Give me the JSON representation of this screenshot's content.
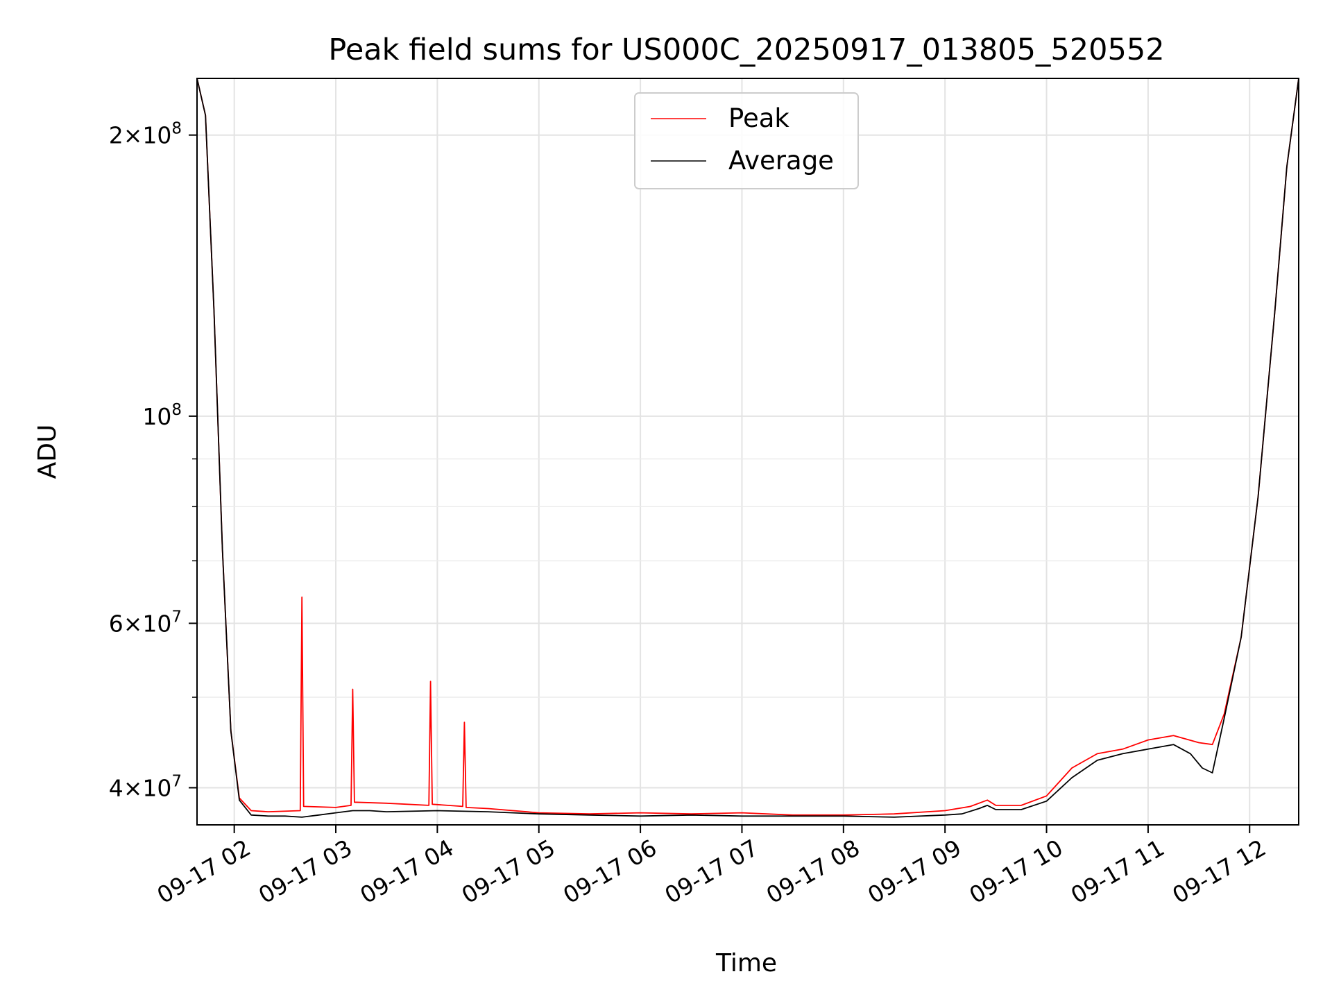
{
  "chart_data": {
    "type": "line",
    "title": "Peak field sums for US000C_20250917_013805_520552",
    "xlabel": "Time",
    "ylabel": "ADU",
    "yscale": "log",
    "xlim": [
      "2025-09-17 01:38",
      "2025-09-17 12:29"
    ],
    "ylim": [
      36500000,
      230000000
    ],
    "grid": true,
    "legend_position": "upper center",
    "x_ticks": [
      {
        "value": "2025-09-17 02:00",
        "label": "09-17 02"
      },
      {
        "value": "2025-09-17 03:00",
        "label": "09-17 03"
      },
      {
        "value": "2025-09-17 04:00",
        "label": "09-17 04"
      },
      {
        "value": "2025-09-17 05:00",
        "label": "09-17 05"
      },
      {
        "value": "2025-09-17 06:00",
        "label": "09-17 06"
      },
      {
        "value": "2025-09-17 07:00",
        "label": "09-17 07"
      },
      {
        "value": "2025-09-17 08:00",
        "label": "09-17 08"
      },
      {
        "value": "2025-09-17 09:00",
        "label": "09-17 09"
      },
      {
        "value": "2025-09-17 10:00",
        "label": "09-17 10"
      },
      {
        "value": "2025-09-17 11:00",
        "label": "09-17 11"
      },
      {
        "value": "2025-09-17 12:00",
        "label": "09-17 12"
      }
    ],
    "y_ticks": [
      {
        "value": 40000000,
        "base": "4",
        "exp": "7"
      },
      {
        "value": 60000000,
        "base": "6",
        "exp": "7"
      },
      {
        "value": 100000000,
        "base": "",
        "exp": "8"
      },
      {
        "value": 200000000,
        "base": "2",
        "exp": "8"
      }
    ],
    "y_minor_ticks": [
      50000000,
      70000000,
      80000000,
      90000000
    ],
    "series": [
      {
        "name": "Peak",
        "color": "#ff0000",
        "x": [
          "2025-09-17 01:38",
          "2025-09-17 01:43",
          "2025-09-17 01:48",
          "2025-09-17 01:53",
          "2025-09-17 01:58",
          "2025-09-17 02:03",
          "2025-09-17 02:10",
          "2025-09-17 02:20",
          "2025-09-17 02:39",
          "2025-09-17 02:40",
          "2025-09-17 02:41",
          "2025-09-17 03:00",
          "2025-09-17 03:09",
          "2025-09-17 03:10",
          "2025-09-17 03:11",
          "2025-09-17 03:30",
          "2025-09-17 03:55",
          "2025-09-17 03:56",
          "2025-09-17 03:57",
          "2025-09-17 04:15",
          "2025-09-17 04:16",
          "2025-09-17 04:17",
          "2025-09-17 04:30",
          "2025-09-17 05:00",
          "2025-09-17 05:30",
          "2025-09-17 06:00",
          "2025-09-17 06:30",
          "2025-09-17 07:00",
          "2025-09-17 07:30",
          "2025-09-17 08:00",
          "2025-09-17 08:30",
          "2025-09-17 09:00",
          "2025-09-17 09:15",
          "2025-09-17 09:25",
          "2025-09-17 09:30",
          "2025-09-17 09:45",
          "2025-09-17 10:00",
          "2025-09-17 10:15",
          "2025-09-17 10:30",
          "2025-09-17 10:45",
          "2025-09-17 11:00",
          "2025-09-17 11:15",
          "2025-09-17 11:30",
          "2025-09-17 11:38",
          "2025-09-17 11:45",
          "2025-09-17 11:55",
          "2025-09-17 12:05",
          "2025-09-17 12:15",
          "2025-09-17 12:22",
          "2025-09-17 12:29"
        ],
        "y": [
          230000000,
          210000000,
          130000000,
          72000000,
          46000000,
          39000000,
          37800000,
          37700000,
          37800000,
          64000000,
          38200000,
          38100000,
          38300000,
          51000000,
          38600000,
          38500000,
          38300000,
          52000000,
          38400000,
          38200000,
          47000000,
          38100000,
          38000000,
          37600000,
          37500000,
          37600000,
          37500000,
          37600000,
          37400000,
          37400000,
          37500000,
          37800000,
          38200000,
          38800000,
          38300000,
          38300000,
          39200000,
          42000000,
          43500000,
          44000000,
          45000000,
          45500000,
          44700000,
          44500000,
          48000000,
          58000000,
          82000000,
          130000000,
          185000000,
          230000000
        ]
      },
      {
        "name": "Average",
        "color": "#000000",
        "x": [
          "2025-09-17 01:38",
          "2025-09-17 01:43",
          "2025-09-17 01:48",
          "2025-09-17 01:53",
          "2025-09-17 01:58",
          "2025-09-17 02:03",
          "2025-09-17 02:10",
          "2025-09-17 02:20",
          "2025-09-17 02:30",
          "2025-09-17 02:40",
          "2025-09-17 02:50",
          "2025-09-17 03:00",
          "2025-09-17 03:10",
          "2025-09-17 03:20",
          "2025-09-17 03:30",
          "2025-09-17 04:00",
          "2025-09-17 04:30",
          "2025-09-17 05:00",
          "2025-09-17 05:30",
          "2025-09-17 06:00",
          "2025-09-17 06:30",
          "2025-09-17 07:00",
          "2025-09-17 07:30",
          "2025-09-17 08:00",
          "2025-09-17 08:30",
          "2025-09-17 09:00",
          "2025-09-17 09:10",
          "2025-09-17 09:20",
          "2025-09-17 09:25",
          "2025-09-17 09:30",
          "2025-09-17 09:45",
          "2025-09-17 10:00",
          "2025-09-17 10:15",
          "2025-09-17 10:30",
          "2025-09-17 10:45",
          "2025-09-17 11:00",
          "2025-09-17 11:15",
          "2025-09-17 11:25",
          "2025-09-17 11:32",
          "2025-09-17 11:38",
          "2025-09-17 11:45",
          "2025-09-17 11:55",
          "2025-09-17 12:05",
          "2025-09-17 12:15",
          "2025-09-17 12:22",
          "2025-09-17 12:29"
        ],
        "y": [
          230000000,
          210000000,
          130000000,
          72000000,
          46000000,
          38800000,
          37400000,
          37300000,
          37300000,
          37200000,
          37400000,
          37600000,
          37800000,
          37800000,
          37700000,
          37800000,
          37700000,
          37500000,
          37400000,
          37300000,
          37400000,
          37300000,
          37300000,
          37300000,
          37200000,
          37400000,
          37500000,
          38000000,
          38300000,
          37900000,
          37900000,
          38700000,
          41000000,
          42800000,
          43500000,
          44000000,
          44500000,
          43500000,
          42000000,
          41500000,
          47500000,
          58000000,
          82000000,
          130000000,
          185000000,
          230000000
        ]
      }
    ]
  }
}
